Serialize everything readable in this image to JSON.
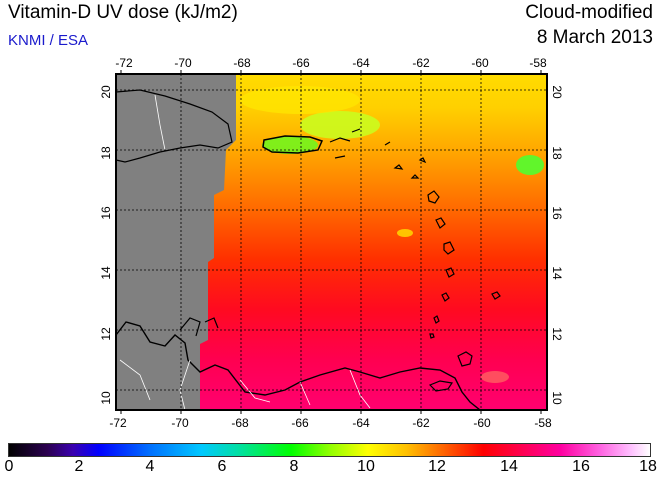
{
  "header": {
    "title": "Vitamin-D UV dose (kJ/m2)",
    "credit": "KNMI / ESA",
    "mode": "Cloud-modified",
    "date": "8 March 2013"
  },
  "map": {
    "lon_labels": [
      "-72",
      "-70",
      "-68",
      "-66",
      "-64",
      "-62",
      "-60",
      "-58"
    ],
    "lat_labels": [
      "10",
      "12",
      "14",
      "16",
      "18",
      "20"
    ],
    "lon_range": [
      -72,
      -58
    ],
    "lat_range": [
      9.5,
      20.5
    ],
    "grid": true,
    "no_data_color": "#808080",
    "coastline_color": "#000000",
    "border_color": "#ffffff"
  },
  "colorbar": {
    "labels": [
      "0",
      "2",
      "4",
      "6",
      "8",
      "10",
      "12",
      "14",
      "16",
      "18"
    ],
    "range": [
      0,
      18
    ]
  }
}
